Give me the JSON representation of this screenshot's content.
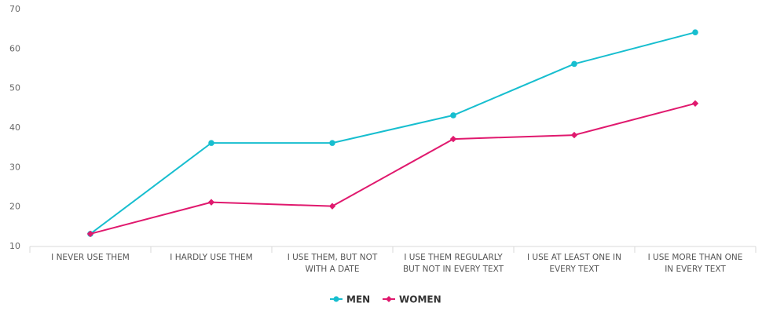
{
  "chart_data": {
    "type": "line",
    "categories": [
      [
        "I NEVER USE THEM"
      ],
      [
        "I HARDLY USE THEM"
      ],
      [
        "I USE THEM, BUT NOT",
        "WITH A DATE"
      ],
      [
        "I USE THEM REGULARLY",
        "BUT NOT IN EVERY TEXT"
      ],
      [
        "I USE AT LEAST ONE IN",
        "EVERY TEXT"
      ],
      [
        "I USE MORE THAN ONE",
        "IN EVERY TEXT"
      ]
    ],
    "series": [
      {
        "name": "MEN",
        "color": "#17becf",
        "marker": "circle",
        "values": [
          13,
          36,
          36,
          43,
          56,
          64
        ]
      },
      {
        "name": "WOMEN",
        "color": "#e0196e",
        "marker": "diamond",
        "values": [
          13,
          21,
          20,
          37,
          38,
          46
        ]
      }
    ],
    "yticks": [
      "10",
      "20",
      "30",
      "40",
      "50",
      "60",
      "70"
    ],
    "ylim": [
      10,
      70
    ],
    "grid": false,
    "legend_position": "bottom-center"
  }
}
